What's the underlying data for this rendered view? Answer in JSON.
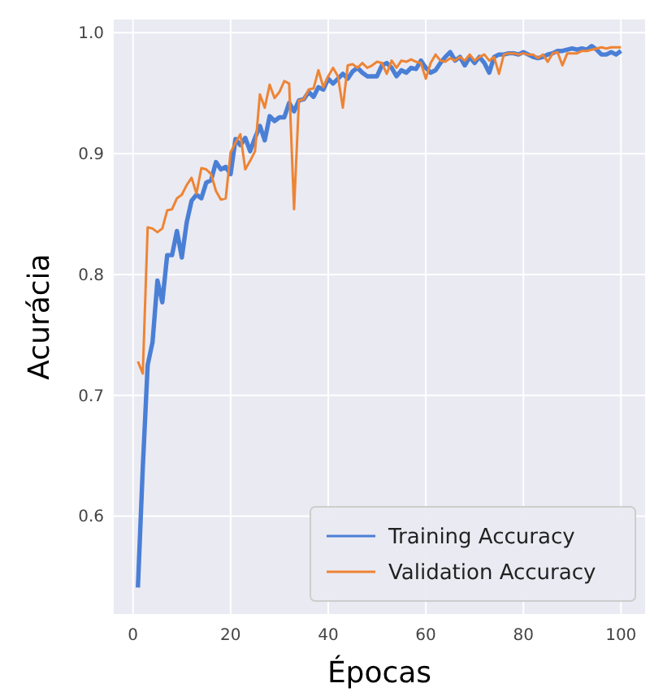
{
  "chart_data": {
    "type": "line",
    "xlabel": "Épocas",
    "ylabel": "Acurácia",
    "x": [
      1,
      2,
      3,
      4,
      5,
      6,
      7,
      8,
      9,
      10,
      11,
      12,
      13,
      14,
      15,
      16,
      17,
      18,
      19,
      20,
      21,
      22,
      23,
      24,
      25,
      26,
      27,
      28,
      29,
      30,
      31,
      32,
      33,
      34,
      35,
      36,
      37,
      38,
      39,
      40,
      41,
      42,
      43,
      44,
      45,
      46,
      47,
      48,
      49,
      50,
      51,
      52,
      53,
      54,
      55,
      56,
      57,
      58,
      59,
      60,
      61,
      62,
      63,
      64,
      65,
      66,
      67,
      68,
      69,
      70,
      71,
      72,
      73,
      74,
      75,
      76,
      77,
      78,
      79,
      80,
      81,
      82,
      83,
      84,
      85,
      86,
      87,
      88,
      89,
      90,
      91,
      92,
      93,
      94,
      95,
      96,
      97,
      98,
      99,
      100
    ],
    "series": [
      {
        "name": "Training Accuracy",
        "color": "#4a7fd6",
        "values": [
          0.541,
          0.64,
          0.725,
          0.744,
          0.795,
          0.777,
          0.816,
          0.816,
          0.836,
          0.814,
          0.843,
          0.861,
          0.866,
          0.863,
          0.876,
          0.878,
          0.893,
          0.887,
          0.889,
          0.883,
          0.912,
          0.907,
          0.913,
          0.902,
          0.913,
          0.923,
          0.911,
          0.931,
          0.927,
          0.93,
          0.93,
          0.942,
          0.935,
          0.944,
          0.945,
          0.951,
          0.947,
          0.955,
          0.953,
          0.962,
          0.958,
          0.962,
          0.966,
          0.962,
          0.968,
          0.971,
          0.967,
          0.964,
          0.964,
          0.964,
          0.973,
          0.975,
          0.971,
          0.964,
          0.969,
          0.967,
          0.971,
          0.97,
          0.977,
          0.971,
          0.967,
          0.969,
          0.975,
          0.98,
          0.984,
          0.977,
          0.98,
          0.973,
          0.98,
          0.975,
          0.98,
          0.975,
          0.967,
          0.98,
          0.982,
          0.982,
          0.983,
          0.983,
          0.982,
          0.984,
          0.982,
          0.98,
          0.979,
          0.98,
          0.982,
          0.983,
          0.985,
          0.985,
          0.986,
          0.987,
          0.986,
          0.987,
          0.986,
          0.989,
          0.986,
          0.982,
          0.982,
          0.984,
          0.982,
          0.985
        ]
      },
      {
        "name": "Validation Accuracy",
        "color": "#ee8434",
        "values": [
          0.728,
          0.718,
          0.839,
          0.838,
          0.835,
          0.838,
          0.853,
          0.854,
          0.863,
          0.866,
          0.874,
          0.88,
          0.867,
          0.888,
          0.887,
          0.883,
          0.869,
          0.862,
          0.863,
          0.901,
          0.909,
          0.916,
          0.887,
          0.894,
          0.902,
          0.949,
          0.938,
          0.957,
          0.946,
          0.951,
          0.96,
          0.958,
          0.854,
          0.944,
          0.945,
          0.953,
          0.954,
          0.969,
          0.955,
          0.964,
          0.971,
          0.964,
          0.938,
          0.973,
          0.974,
          0.971,
          0.975,
          0.971,
          0.973,
          0.976,
          0.975,
          0.966,
          0.977,
          0.971,
          0.977,
          0.976,
          0.978,
          0.976,
          0.975,
          0.962,
          0.975,
          0.982,
          0.977,
          0.976,
          0.979,
          0.977,
          0.98,
          0.977,
          0.982,
          0.977,
          0.98,
          0.982,
          0.977,
          0.98,
          0.966,
          0.982,
          0.983,
          0.983,
          0.982,
          0.983,
          0.982,
          0.982,
          0.979,
          0.982,
          0.976,
          0.983,
          0.984,
          0.973,
          0.983,
          0.983,
          0.983,
          0.985,
          0.985,
          0.986,
          0.987,
          0.988,
          0.987,
          0.988,
          0.988,
          0.988
        ]
      }
    ],
    "xlim": [
      -3.95,
      104.95
    ],
    "ylim": [
      0.519,
      1.011
    ],
    "xticks": [
      0,
      20,
      40,
      60,
      80,
      100
    ],
    "yticks": [
      0.6,
      0.7,
      0.8,
      0.9,
      {
        "value": 1.0,
        "label": "1.0"
      }
    ],
    "grid": true,
    "legend": "bottom right",
    "line_style": "solid",
    "marker": "none"
  }
}
